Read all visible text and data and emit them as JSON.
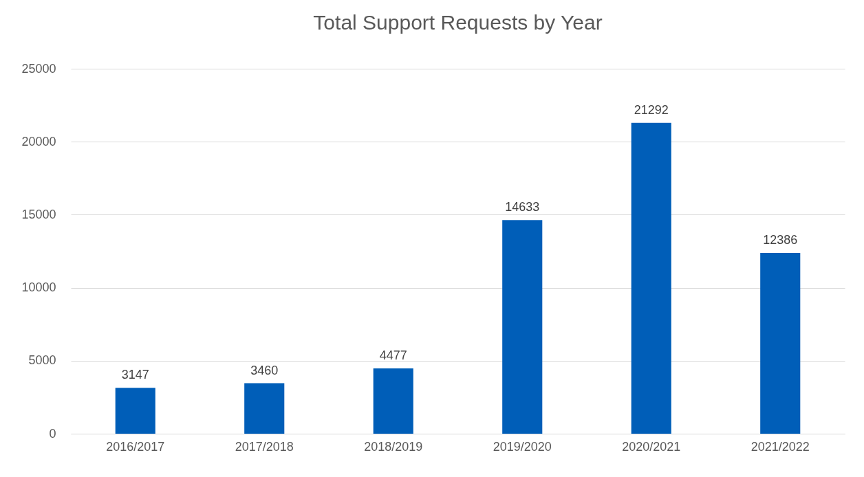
{
  "chart_data": {
    "type": "bar",
    "title": "Total Support Requests by Year",
    "categories": [
      "2016/2017",
      "2017/2018",
      "2018/2019",
      "2019/2020",
      "2020/2021",
      "2021/2022"
    ],
    "values": [
      3147,
      3460,
      4477,
      14633,
      21292,
      12386
    ],
    "color": "#005eb8",
    "ylim": [
      0,
      25000
    ],
    "yticks": [
      0,
      5000,
      10000,
      15000,
      20000,
      25000
    ],
    "grid": true,
    "data_labels": true
  }
}
